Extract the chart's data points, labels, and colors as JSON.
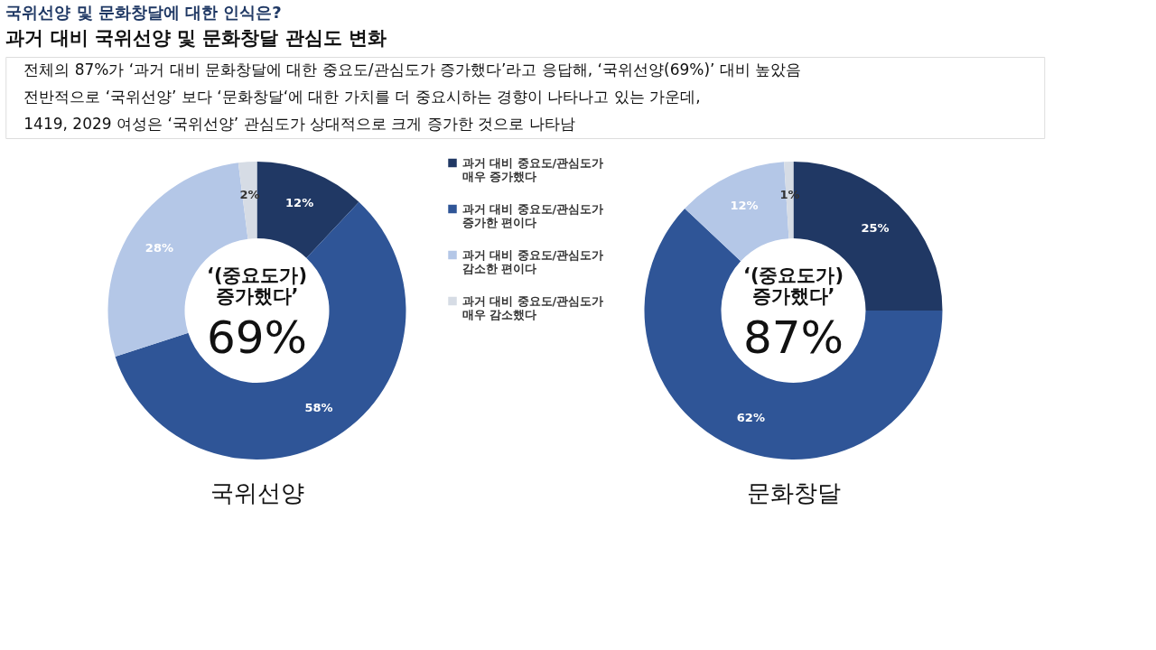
{
  "chart_data": [
    {
      "type": "other",
      "title": "국위선양 및 문화창달에 대한 인식은?",
      "subtitle": "과거 대비 국위선양 및 문화창달 관심도 변화",
      "annotations": [
        "전체의 87%가 ‘과거 대비 문화창달에 대한 중요도/관심도가 증가했다’라고 응답해, ‘국위선양(69%)’ 대비 높았음",
        "전반적으로 ‘국위선양’ 보다 ‘문화창달‘에 대한 가치를 더 중요시하는 경향이 나타나고 있는 가운데,",
        "1419, 2029 여성은 ‘국위선양’ 관심도가 상대적으로 크게 증가한 것으로 나타남"
      ]
    },
    {
      "type": "donut",
      "title": "국위선양",
      "legend": "right",
      "categories": [
        "과거 대비 중요도/관심도가\n매우 증가했다",
        "과거 대비 중요도/관심도가\n증가한 편이다",
        "과거 대비 중요도/관심도가\n감소한 편이다",
        "과거 대비 중요도/관심도가\n매우 감소했다"
      ],
      "values": [
        12,
        58,
        28,
        2
      ],
      "value_labels": [
        "12%",
        "58%",
        "28%",
        "2%"
      ],
      "colors": [
        "#203864",
        "#2f5597",
        "#b4c7e7",
        "#d6dce5"
      ],
      "annotations": [
        "‘(중요도가)\n증가했다’",
        "69%"
      ]
    },
    {
      "type": "donut",
      "title": "문화창달",
      "values": [
        25,
        62,
        12,
        1
      ],
      "value_labels": [
        "25%",
        "62%",
        "12%",
        "1%"
      ],
      "colors": [
        "#203864",
        "#2f5597",
        "#b4c7e7",
        "#d6dce5"
      ],
      "annotations": [
        "‘(중요도가)\n증가했다’",
        "87%"
      ]
    }
  ]
}
